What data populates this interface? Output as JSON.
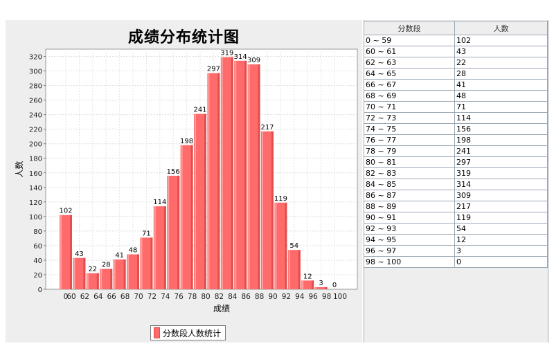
{
  "chart_data": {
    "type": "bar",
    "title": "成绩分布统计图",
    "xlabel": "成绩",
    "ylabel": "人数",
    "ylim": [
      0,
      330
    ],
    "yticks": [
      0,
      20,
      40,
      60,
      80,
      100,
      120,
      140,
      160,
      180,
      200,
      220,
      240,
      260,
      280,
      300,
      320
    ],
    "xtick_labels": [
      "0",
      "60",
      "62",
      "64",
      "66",
      "68",
      "70",
      "72",
      "74",
      "76",
      "78",
      "80",
      "82",
      "84",
      "86",
      "88",
      "90",
      "92",
      "94",
      "96",
      "98",
      "100"
    ],
    "categories": [
      "0 ~ 59",
      "60 ~ 61",
      "62 ~ 63",
      "64 ~ 65",
      "66 ~ 67",
      "68 ~ 69",
      "70 ~ 71",
      "72 ~ 73",
      "74 ~ 75",
      "76 ~ 77",
      "78 ~ 79",
      "80 ~ 81",
      "82 ~ 83",
      "84 ~ 85",
      "86 ~ 87",
      "88 ~ 89",
      "90 ~ 91",
      "92 ~ 93",
      "94 ~ 95",
      "96 ~ 97",
      "98 ~ 100"
    ],
    "series": [
      {
        "name": "分数段人数统计",
        "values": [
          102,
          43,
          22,
          28,
          41,
          48,
          71,
          114,
          156,
          198,
          241,
          297,
          319,
          314,
          309,
          217,
          119,
          54,
          12,
          3,
          0
        ]
      }
    ],
    "grid": true,
    "legend": "bottom",
    "bar_color": "#ff6a6a"
  },
  "table": {
    "headers": [
      "分数段",
      "人数"
    ],
    "rows": [
      [
        "0 ~ 59",
        "102"
      ],
      [
        "60 ~ 61",
        "43"
      ],
      [
        "62 ~ 63",
        "22"
      ],
      [
        "64 ~ 65",
        "28"
      ],
      [
        "66 ~ 67",
        "41"
      ],
      [
        "68 ~ 69",
        "48"
      ],
      [
        "70 ~ 71",
        "71"
      ],
      [
        "72 ~ 73",
        "114"
      ],
      [
        "74 ~ 75",
        "156"
      ],
      [
        "76 ~ 77",
        "198"
      ],
      [
        "78 ~ 79",
        "241"
      ],
      [
        "80 ~ 81",
        "297"
      ],
      [
        "82 ~ 83",
        "319"
      ],
      [
        "84 ~ 85",
        "314"
      ],
      [
        "86 ~ 87",
        "309"
      ],
      [
        "88 ~ 89",
        "217"
      ],
      [
        "90 ~ 91",
        "119"
      ],
      [
        "92 ~ 93",
        "54"
      ],
      [
        "94 ~ 95",
        "12"
      ],
      [
        "96 ~ 97",
        "3"
      ],
      [
        "98 ~ 100",
        "0"
      ]
    ]
  }
}
